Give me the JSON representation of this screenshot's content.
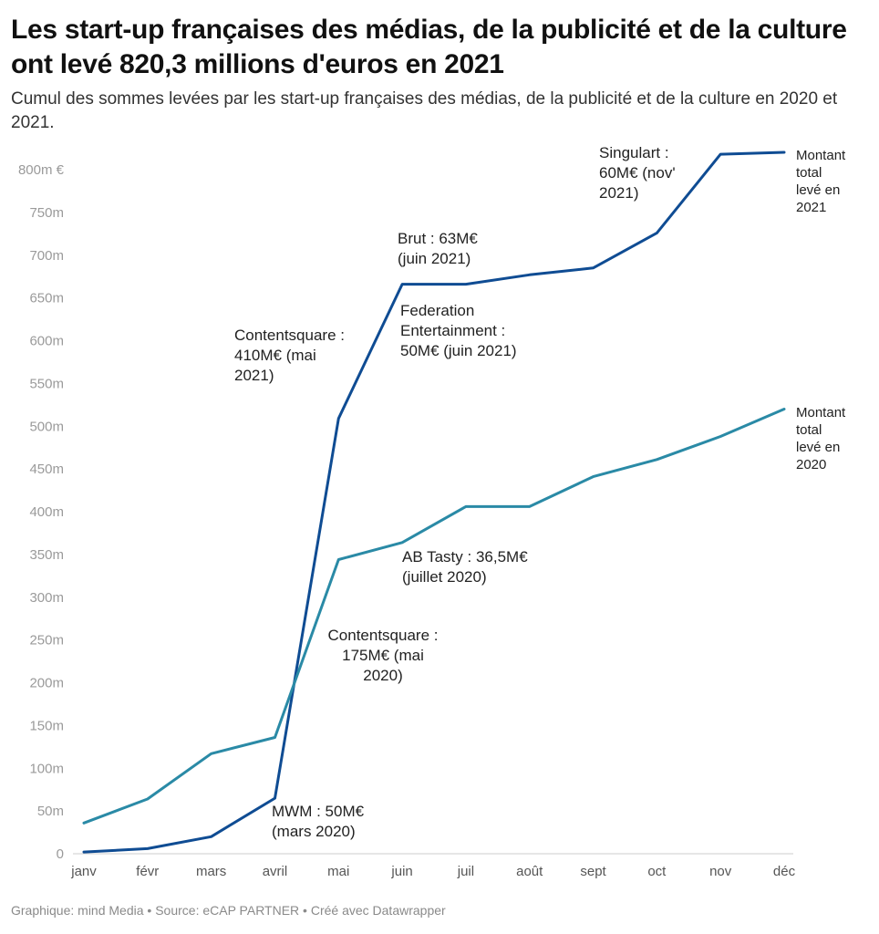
{
  "header": {
    "title": "Les start-up françaises des médias, de la publicité et de la culture ont levé 820,3 millions d'euros en 2021",
    "subtitle": "Cumul des sommes levées par les start-up françaises des médias, de la publicité et de la culture en 2020 et 2021."
  },
  "footer": {
    "text": "Graphique: mind Media • Source: eCAP PARTNER • Créé avec Datawrapper"
  },
  "chart_data": {
    "type": "line",
    "title": "Les start-up françaises des médias, de la publicité et de la culture ont levé 820,3 millions d'euros en 2021",
    "subtitle": "Cumul des sommes levées par les start-up françaises des médias, de la publicité et de la culture en 2020 et 2021.",
    "xlabel": "",
    "ylabel": "",
    "categories": [
      "janv",
      "févr",
      "mars",
      "avril",
      "mai",
      "juin",
      "juil",
      "août",
      "sept",
      "oct",
      "nov",
      "déc"
    ],
    "ylim": [
      0,
      800
    ],
    "yticks": [
      0,
      50,
      100,
      150,
      200,
      250,
      300,
      350,
      400,
      450,
      500,
      550,
      600,
      650,
      700,
      750,
      800
    ],
    "ytick_labels": [
      "0",
      "50m",
      "100m",
      "150m",
      "200m",
      "250m",
      "300m",
      "350m",
      "400m",
      "450m",
      "500m",
      "550m",
      "600m",
      "650m",
      "700m",
      "750m",
      "800m €"
    ],
    "grid": false,
    "series": [
      {
        "name": "Montant total levé en 2021",
        "color": "#0f4c93",
        "values": [
          2,
          6,
          20,
          65,
          509,
          666,
          666,
          677,
          685,
          726,
          818,
          820.3
        ]
      },
      {
        "name": "Montant total levé en 2020",
        "color": "#2a8aa6",
        "values": [
          36,
          64,
          117,
          136,
          344,
          364,
          406,
          406,
          441,
          461,
          488,
          520
        ]
      }
    ],
    "end_labels": [
      {
        "lines": [
          "Montant",
          "total",
          "levé en",
          "2021"
        ]
      },
      {
        "lines": [
          "Montant",
          "total",
          "levé en",
          "2020"
        ]
      }
    ],
    "annotations": [
      {
        "lines": [
          "Singulart :",
          "60M€ (nov'",
          "2021)"
        ]
      },
      {
        "lines": [
          "Brut : 63M€",
          "(juin 2021)"
        ]
      },
      {
        "lines": [
          "Federation",
          "Entertainment :",
          "50M€ (juin 2021)"
        ]
      },
      {
        "lines": [
          "Contentsquare :",
          "410M€ (mai",
          "2021)"
        ]
      },
      {
        "lines": [
          "AB Tasty : 36,5M€",
          "(juillet 2020)"
        ]
      },
      {
        "lines": [
          "Contentsquare :",
          "175M€ (mai",
          "2020)"
        ]
      },
      {
        "lines": [
          "MWM : 50M€",
          "(mars 2020)"
        ]
      }
    ]
  }
}
